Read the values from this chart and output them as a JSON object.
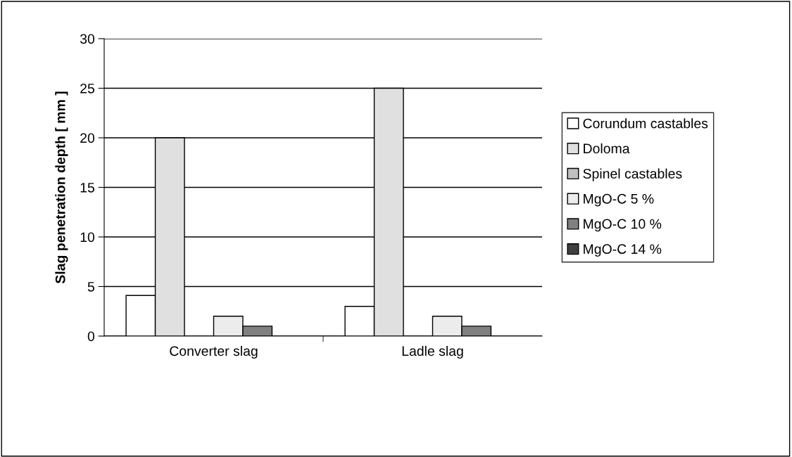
{
  "chart_data": {
    "type": "bar",
    "ylabel": "Slag penetration depth [ mm ]",
    "categories": [
      "Converter slag",
      "Ladle slag"
    ],
    "series": [
      {
        "name": "Corundum castables",
        "color": "#ffffff",
        "values": [
          4.1,
          3
        ]
      },
      {
        "name": "Doloma",
        "color": "#e0e0e0",
        "values": [
          20,
          25
        ]
      },
      {
        "name": "Spinel castables",
        "color": "#c0c0c0",
        "values": [
          null,
          null
        ]
      },
      {
        "name": "MgO-C 5 %",
        "color": "#ececec",
        "values": [
          2,
          2
        ]
      },
      {
        "name": "MgO-C 10 %",
        "color": "#808080",
        "values": [
          1,
          1
        ]
      },
      {
        "name": "MgO-C 14 %",
        "color": "#404040",
        "values": [
          null,
          null
        ]
      }
    ],
    "ylim": [
      0,
      30
    ],
    "yticks": [
      0,
      5,
      10,
      15,
      20,
      25,
      30
    ],
    "grid": "y",
    "legend": "right"
  }
}
